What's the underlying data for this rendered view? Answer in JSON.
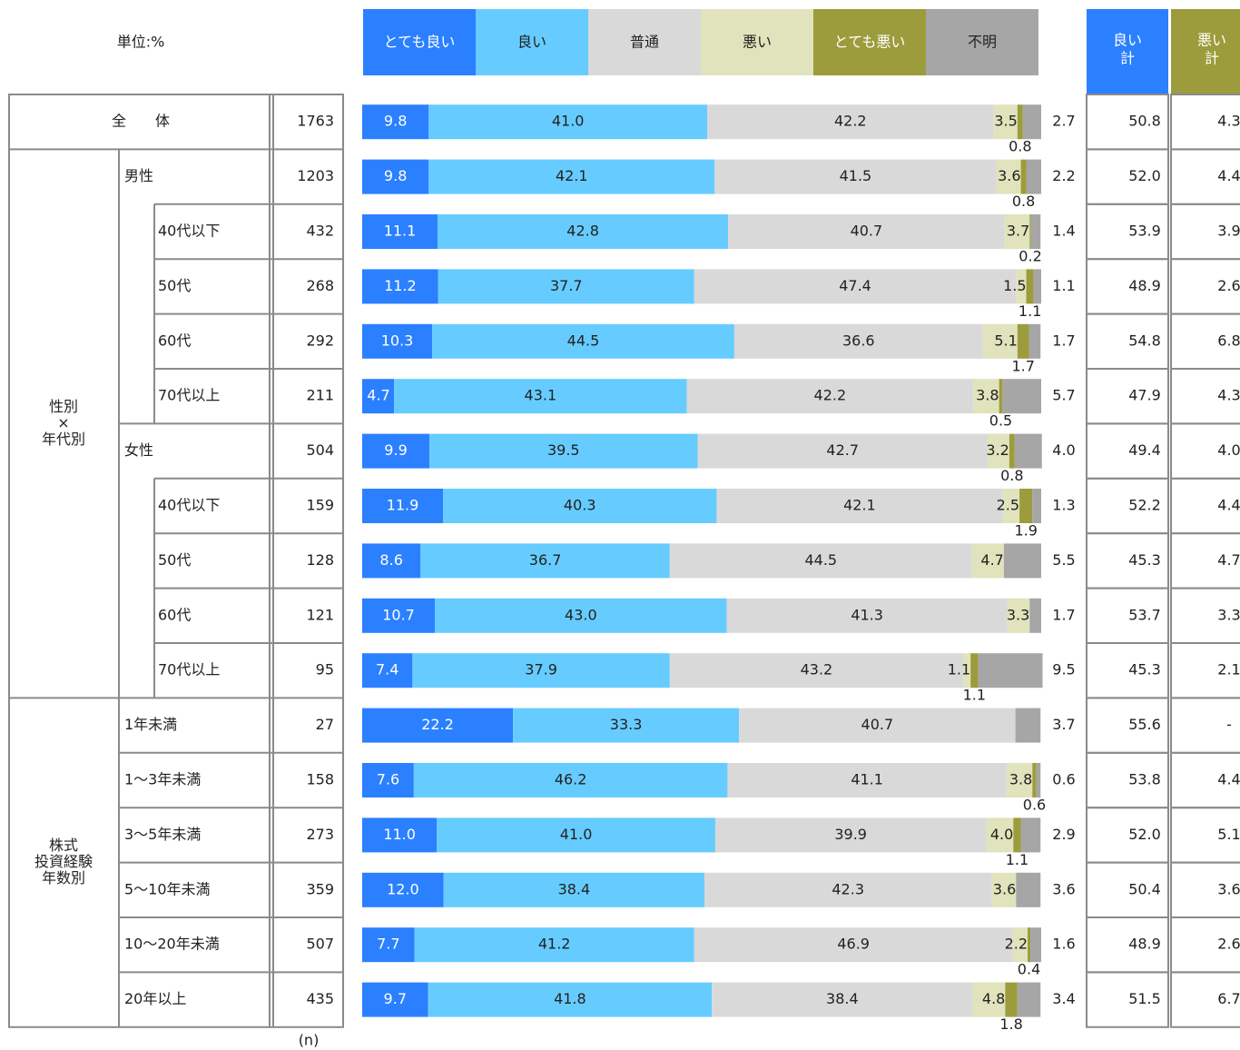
{
  "chart_data": {
    "type": "stacked-bar",
    "unit_label": "単位:%",
    "n_label": "(n)",
    "categories": [
      "全　　体",
      "男性",
      "40代以下",
      "50代",
      "60代",
      "70代以上",
      "女性",
      "40代以下",
      "50代",
      "60代",
      "70代以上",
      "1年未満",
      "1〜3年未満",
      "3〜5年未満",
      "5〜10年未満",
      "10〜20年未満",
      "20年以上"
    ],
    "row_groups": [
      [
        "性別",
        "×",
        "年代別"
      ],
      [
        "株式",
        "投資経験",
        "年数別"
      ]
    ],
    "n": [
      1763,
      1203,
      432,
      268,
      292,
      211,
      504,
      159,
      128,
      121,
      95,
      27,
      158,
      273,
      359,
      507,
      435
    ],
    "series": [
      {
        "name": "とても良い",
        "color": "#2b80ff",
        "values": [
          9.8,
          9.8,
          11.1,
          11.2,
          10.3,
          4.7,
          9.9,
          11.9,
          8.6,
          10.7,
          7.4,
          22.2,
          7.6,
          11,
          12,
          7.7,
          9.7
        ],
        "value_labels": [
          "9.8",
          "9.8",
          "11.1",
          "11.2",
          "10.3",
          "4.7",
          "9.9",
          "11.9",
          "8.6",
          "10.7",
          "7.4",
          "22.2",
          "7.6",
          "11.0",
          "12.0",
          "7.7",
          "9.7"
        ]
      },
      {
        "name": "良い",
        "color": "#66ccff",
        "values": [
          41,
          42.1,
          42.8,
          37.7,
          44.5,
          43.1,
          39.5,
          40.3,
          36.7,
          43,
          37.9,
          33.3,
          46.2,
          41,
          38.4,
          41.2,
          41.8
        ],
        "value_labels": [
          "41.0",
          "42.1",
          "42.8",
          "37.7",
          "44.5",
          "43.1",
          "39.5",
          "40.3",
          "36.7",
          "43.0",
          "37.9",
          "33.3",
          "46.2",
          "41.0",
          "38.4",
          "41.2",
          "41.8"
        ]
      },
      {
        "name": "普通",
        "color": "#d9d9d9",
        "values": [
          42.2,
          41.5,
          40.7,
          47.4,
          36.6,
          42.2,
          42.7,
          42.1,
          44.5,
          41.3,
          43.2,
          40.7,
          41.1,
          39.9,
          42.3,
          46.9,
          38.4
        ],
        "value_labels": [
          "42.2",
          "41.5",
          "40.7",
          "47.4",
          "36.6",
          "42.2",
          "42.7",
          "42.1",
          "44.5",
          "41.3",
          "43.2",
          "40.7",
          "41.1",
          "39.9",
          "42.3",
          "46.9",
          "38.4"
        ]
      },
      {
        "name": "悪い",
        "color": "#e0e3bc",
        "values": [
          3.5,
          3.6,
          3.7,
          1.5,
          5.1,
          3.8,
          3.2,
          2.5,
          4.7,
          3.3,
          1.1,
          null,
          3.8,
          4,
          3.6,
          2.2,
          4.8
        ],
        "value_labels": [
          "3.5",
          "3.6",
          "3.7",
          "1.5",
          "5.1",
          "3.8",
          "3.2",
          "2.5",
          "4.7",
          "3.3",
          "1.1",
          null,
          "3.8",
          "4.0",
          "3.6",
          "2.2",
          "4.8"
        ]
      },
      {
        "name": "とても悪い",
        "color": "#9c9c3c",
        "values": [
          0.8,
          0.8,
          0.2,
          1.1,
          1.7,
          0.5,
          0.8,
          1.9,
          null,
          null,
          1.1,
          null,
          0.6,
          1.1,
          null,
          0.4,
          1.8
        ],
        "value_labels": [
          "0.8",
          "0.8",
          "0.2",
          "1.1",
          "1.7",
          "0.5",
          "0.8",
          "1.9",
          null,
          null,
          "1.1",
          null,
          "0.6",
          "1.1",
          null,
          "0.4",
          "1.8"
        ]
      },
      {
        "name": "不明",
        "color": "#a6a6a6",
        "values": [
          2.7,
          2.2,
          1.4,
          1.1,
          1.7,
          5.7,
          4,
          1.3,
          5.5,
          1.7,
          9.5,
          3.7,
          0.6,
          2.9,
          3.6,
          1.6,
          3.4
        ],
        "value_labels": [
          "2.7",
          "2.2",
          "1.4",
          "1.1",
          "1.7",
          "5.7",
          "4.0",
          "1.3",
          "5.5",
          "1.7",
          "9.5",
          "3.7",
          "0.6",
          "2.9",
          "3.6",
          "1.6",
          "3.4"
        ]
      }
    ],
    "summary_columns": [
      {
        "name": [
          "良い",
          "計"
        ],
        "color": "#2b80ff",
        "values": [
          "50.8",
          "52.0",
          "53.9",
          "48.9",
          "54.8",
          "47.9",
          "49.4",
          "52.2",
          "45.3",
          "53.7",
          "45.3",
          "55.6",
          "53.8",
          "52.0",
          "50.4",
          "48.9",
          "51.5"
        ]
      },
      {
        "name": [
          "悪い",
          "計"
        ],
        "color": "#9c9c3c",
        "values": [
          "4.3",
          "4.4",
          "3.9",
          "2.6",
          "6.8",
          "4.3",
          "4.0",
          "4.4",
          "4.7",
          "3.3",
          "2.1",
          "-",
          "4.4",
          "5.1",
          "3.6",
          "2.6",
          "6.7"
        ]
      }
    ],
    "xlim": [
      0,
      100
    ]
  }
}
